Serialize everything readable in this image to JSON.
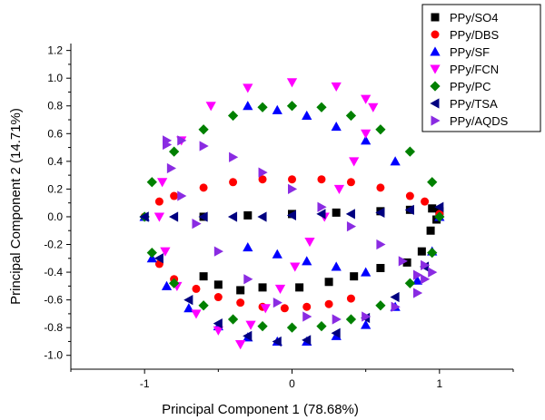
{
  "chart_data": {
    "type": "scatter",
    "xlabel": "Principal Component 1 (78.68%)",
    "ylabel": "Principal Component 2 (14.71%)",
    "xlim": [
      -1.5,
      1.5
    ],
    "ylim": [
      -1.1,
      1.25
    ],
    "x_ticks": [
      -1,
      0,
      1
    ],
    "x_tick_labels": [
      "-1",
      "0",
      "1"
    ],
    "y_ticks": [
      -1.0,
      -0.8,
      -0.6,
      -0.4,
      -0.2,
      0.0,
      0.2,
      0.4,
      0.6,
      0.8,
      1.0,
      1.2
    ],
    "y_tick_labels": [
      "-1.0",
      "-0.8",
      "-0.6",
      "-0.4",
      "-0.2",
      "0.0",
      "0.2",
      "0.4",
      "0.6",
      "0.8",
      "1.0",
      "1.2"
    ],
    "grid": false,
    "legend_position": "top-right",
    "series": [
      {
        "name": "PPy/SO4",
        "marker": "square",
        "color": "#000000",
        "x": [
          -0.6,
          -0.5,
          -0.35,
          -0.2,
          0.05,
          0.25,
          0.42,
          0.6,
          0.78,
          0.88,
          0.94,
          0.98,
          1.0,
          -0.6,
          -0.3,
          0.0,
          0.3,
          0.6,
          0.8,
          0.95
        ],
        "y": [
          -0.43,
          -0.49,
          -0.53,
          -0.51,
          -0.51,
          -0.47,
          -0.43,
          -0.37,
          -0.33,
          -0.25,
          -0.1,
          -0.02,
          0.04,
          0.0,
          0.01,
          0.02,
          0.03,
          0.04,
          0.05,
          0.06
        ]
      },
      {
        "name": "PPy/DBS",
        "marker": "circle",
        "color": "#ff0000",
        "x": [
          -1.0,
          -0.9,
          -0.8,
          -0.6,
          -0.4,
          -0.2,
          0.0,
          0.2,
          0.4,
          0.6,
          0.8,
          0.9,
          1.0,
          -0.9,
          -0.8,
          -0.65,
          -0.5,
          -0.35,
          -0.2,
          -0.05,
          0.1,
          0.25,
          0.4
        ],
        "y": [
          0.0,
          0.11,
          0.15,
          0.21,
          0.25,
          0.27,
          0.27,
          0.27,
          0.25,
          0.21,
          0.15,
          0.11,
          0.02,
          -0.34,
          -0.45,
          -0.52,
          -0.58,
          -0.62,
          -0.65,
          -0.66,
          -0.65,
          -0.63,
          -0.59
        ]
      },
      {
        "name": "PPy/SF",
        "marker": "triangle-up",
        "color": "#0000ff",
        "x": [
          -1.0,
          -0.95,
          -0.85,
          -0.7,
          -0.5,
          -0.3,
          -0.1,
          0.1,
          0.3,
          0.5,
          0.7,
          0.85,
          0.95,
          1.0,
          -0.3,
          -0.1,
          0.1,
          0.3,
          0.5,
          0.7,
          -0.3,
          -0.1,
          0.1,
          0.3,
          0.5
        ],
        "y": [
          0.0,
          -0.3,
          -0.5,
          -0.66,
          -0.79,
          -0.87,
          -0.9,
          -0.9,
          -0.86,
          -0.78,
          -0.65,
          -0.46,
          -0.25,
          0.0,
          0.8,
          0.77,
          0.73,
          0.65,
          0.55,
          0.4,
          -0.22,
          -0.27,
          -0.32,
          -0.36,
          -0.4
        ]
      },
      {
        "name": "PPy/FCN",
        "marker": "triangle-down",
        "color": "#ff00ff",
        "x": [
          -0.35,
          -0.5,
          -0.65,
          -0.78,
          -0.86,
          -0.9,
          -0.88,
          -0.75,
          -0.55,
          -0.3,
          0.0,
          0.3,
          0.5,
          0.55,
          0.5,
          0.42,
          0.32,
          0.22,
          0.12,
          0.02,
          -0.08,
          -0.18,
          -0.28,
          -0.35
        ],
        "y": [
          -0.92,
          -0.82,
          -0.7,
          -0.5,
          -0.25,
          0.0,
          0.25,
          0.55,
          0.8,
          0.93,
          0.97,
          0.94,
          0.85,
          0.79,
          0.6,
          0.4,
          0.2,
          0.0,
          -0.18,
          -0.36,
          -0.52,
          -0.66,
          -0.78,
          -0.92
        ]
      },
      {
        "name": "PPy/PC",
        "marker": "diamond",
        "color": "#008000",
        "x": [
          -1.0,
          -0.95,
          -0.8,
          -0.6,
          -0.4,
          -0.2,
          0.0,
          0.2,
          0.4,
          0.6,
          0.8,
          0.95,
          1.0,
          0.95,
          0.8,
          0.6,
          0.4,
          0.2,
          0.0,
          -0.2,
          -0.4,
          -0.6,
          -0.8,
          -0.95
        ],
        "y": [
          0.0,
          0.25,
          0.47,
          0.63,
          0.73,
          0.79,
          0.8,
          0.79,
          0.73,
          0.63,
          0.47,
          0.25,
          0.0,
          -0.26,
          -0.48,
          -0.64,
          -0.74,
          -0.79,
          -0.8,
          -0.79,
          -0.74,
          -0.64,
          -0.48,
          -0.26
        ]
      },
      {
        "name": "PPy/TSA",
        "marker": "triangle-left",
        "color": "#000080",
        "x": [
          -1.0,
          -0.8,
          -0.6,
          -0.4,
          -0.2,
          0.0,
          0.2,
          0.4,
          0.6,
          0.8,
          1.0,
          -1.0,
          -0.9,
          -0.7,
          -0.5,
          -0.3,
          -0.1,
          0.1,
          0.3,
          0.5,
          0.7,
          0.9
        ],
        "y": [
          0.0,
          0.0,
          0.0,
          0.0,
          0.0,
          0.01,
          0.02,
          0.02,
          0.03,
          0.05,
          0.07,
          0.0,
          -0.3,
          -0.6,
          -0.77,
          -0.86,
          -0.9,
          -0.89,
          -0.84,
          -0.73,
          -0.58,
          -0.36
        ]
      },
      {
        "name": "PPy/AQDS",
        "marker": "triangle-right",
        "color": "#8a2be2",
        "x": [
          -0.85,
          -0.75,
          -0.6,
          -0.4,
          -0.2,
          0.0,
          0.2,
          0.4,
          0.6,
          0.75,
          0.85,
          0.9,
          0.85,
          0.7,
          0.5,
          0.3,
          0.1,
          -0.1,
          -0.3,
          -0.5,
          -0.65,
          -0.75,
          -0.82,
          -0.85,
          0.9,
          0.95
        ],
        "y": [
          0.55,
          0.55,
          0.51,
          0.43,
          0.32,
          0.2,
          0.07,
          -0.07,
          -0.2,
          -0.32,
          -0.42,
          -0.45,
          -0.55,
          -0.65,
          -0.72,
          -0.74,
          -0.72,
          -0.62,
          -0.45,
          -0.25,
          -0.05,
          0.15,
          0.35,
          0.52,
          -0.35,
          -0.4
        ]
      }
    ]
  }
}
